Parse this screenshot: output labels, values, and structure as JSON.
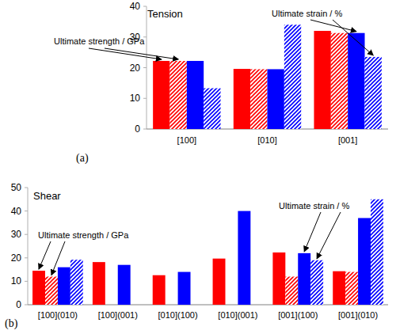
{
  "chart_data": [
    {
      "type": "bar",
      "title": "Tension",
      "subtitle": "(a)",
      "categories": [
        "[100]",
        "[010]",
        "[001]"
      ],
      "series": [
        {
          "color": "#ff0000",
          "line_style": "solid",
          "values": [
            22.2,
            19.6,
            32.0
          ]
        },
        {
          "color": "#ff0000",
          "line_style": "hatched",
          "values": [
            22.2,
            19.5,
            31.3
          ]
        },
        {
          "color": "#0000ff",
          "line_style": "solid",
          "values": [
            22.2,
            19.5,
            31.3
          ]
        },
        {
          "color": "#0000ff",
          "line_style": "hatched",
          "values": [
            13.3,
            34.0,
            23.5
          ]
        }
      ],
      "ylim": [
        0,
        40
      ],
      "yticks": [
        0,
        10,
        20,
        30,
        40
      ],
      "annotations": [
        "Ultimate strength / GPa",
        "Ultimate strain / %"
      ]
    },
    {
      "type": "bar",
      "title": "Shear",
      "subtitle": "(b)",
      "categories": [
        "[100](010)",
        "[100](001)",
        "[010](100)",
        "[010](001)",
        "[001](100)",
        "[001](010)"
      ],
      "series": [
        {
          "color": "#ff0000",
          "line_style": "solid",
          "values": [
            14.5,
            18.2,
            12.6,
            19.7,
            22.3,
            14.3
          ]
        },
        {
          "color": "#ff0000",
          "line_style": "hatched",
          "values": [
            12.0,
            null,
            null,
            null,
            12.0,
            14.0
          ]
        },
        {
          "color": "#0000ff",
          "line_style": "solid",
          "values": [
            16.0,
            17.0,
            14.0,
            40.0,
            22.0,
            37.0
          ]
        },
        {
          "color": "#0000ff",
          "line_style": "hatched",
          "values": [
            19.2,
            null,
            null,
            null,
            19.0,
            45.0
          ]
        }
      ],
      "ylim": [
        0,
        50
      ],
      "yticks": [
        0,
        10,
        20,
        30,
        40,
        50
      ],
      "annotations": [
        "Ultimate strength / GPa",
        "Ultimate strain / %"
      ]
    }
  ]
}
